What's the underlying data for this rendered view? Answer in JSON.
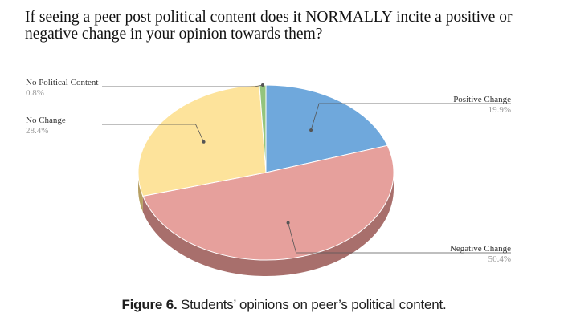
{
  "chart_data": {
    "type": "pie",
    "title": "If seeing a peer post political content does it NORMALLY incite a positive or negative change in your opinion towards them?",
    "slices": [
      {
        "label": "Positive Change",
        "value": 19.9,
        "pct_label": "19.9%",
        "color": "#6fa8dc",
        "side_color": "#4f7fae"
      },
      {
        "label": "Negative Change",
        "value": 50.4,
        "pct_label": "50.4%",
        "color": "#e6a09c",
        "side_color": "#a86f6c"
      },
      {
        "label": "No Change",
        "value": 28.4,
        "pct_label": "28.4%",
        "color": "#fde39b",
        "side_color": "#b7a064"
      },
      {
        "label": "No Political Content",
        "value": 0.8,
        "pct_label": "0.8%",
        "color": "#93c47d",
        "side_color": "#6a9a55"
      }
    ]
  },
  "caption": {
    "prefix": "Figure 6.",
    "text": " Students’ opinions on peer’s political content."
  }
}
